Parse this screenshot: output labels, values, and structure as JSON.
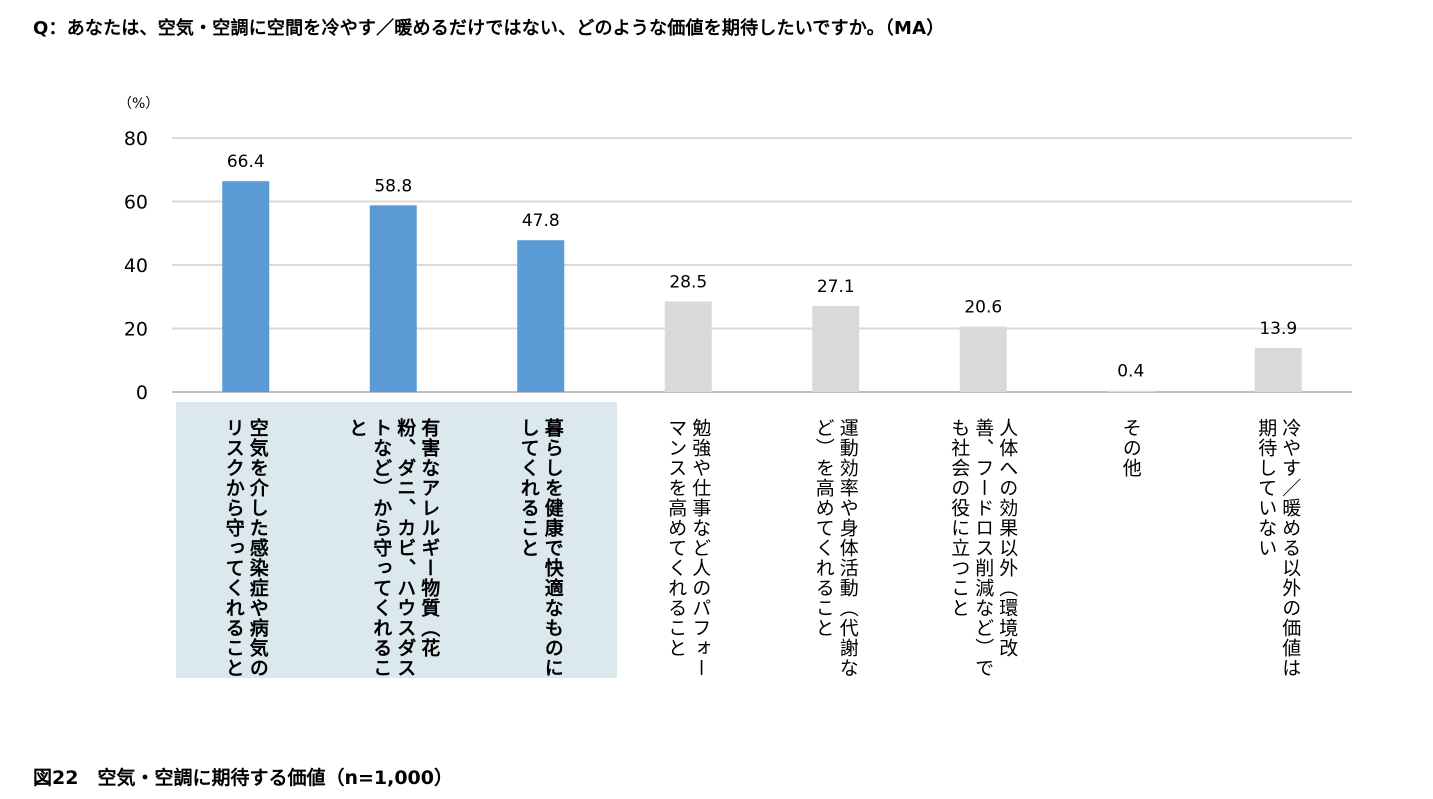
{
  "question": "Q：あなたは、空気・空調に空間を冷やす／暖めるだけではない、どのような価値を期待したいですか。（MA）",
  "caption": "図22　空気・空調に期待する価値（n=1,000）",
  "chart_data": {
    "type": "bar",
    "unit_label": "（%）",
    "ylim": [
      0,
      80
    ],
    "yticks": [
      0,
      20,
      40,
      60,
      80
    ],
    "grid": true,
    "categories": [
      "空気を介した感染症や病気のリスクから守ってくれること",
      "有害なアレルギー物質（花粉、ダニ、カビ、ハウスダストなど）から守ってくれること",
      "暮らしを健康で快適なものにしてくれること",
      "勉強や仕事など人のパフォーマンスを高めてくれること",
      "運動効率や身体活動（代謝など）を高めてくれること",
      "人体への効果以外（環境改善、フードロス削減など）でも社会の役に立つこと",
      "その他",
      "冷やす／暖める以外の価値は期待していない"
    ],
    "values": [
      66.4,
      58.8,
      47.8,
      28.5,
      27.1,
      20.6,
      0.4,
      13.9
    ],
    "value_labels": [
      "66.4",
      "58.8",
      "47.8",
      "28.5",
      "27.1",
      "20.6",
      "0.4",
      "13.9"
    ],
    "highlighted": [
      true,
      true,
      true,
      false,
      false,
      false,
      false,
      false
    ],
    "colors": {
      "highlight": "#5b9bd5",
      "normal": "#d9d9d9",
      "highlight_bg": "#dbe9ef",
      "grid": "#d9d9d9"
    }
  }
}
